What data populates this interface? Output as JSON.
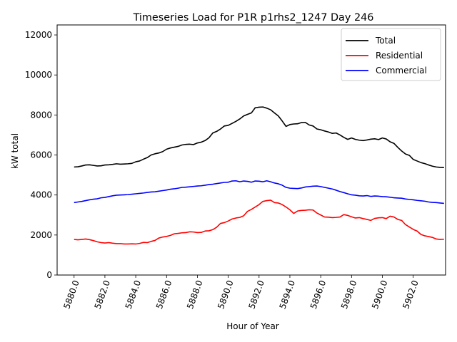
{
  "chart_data": {
    "type": "line",
    "title": "Timeseries Load for P1R p1rhs2_1247  Day 246",
    "xlabel": "Hour of Year",
    "ylabel": "kW total",
    "xlim": [
      5878.9,
      5904.1
    ],
    "ylim": [
      0,
      12500
    ],
    "xticks": [
      5880,
      5882,
      5884,
      5886,
      5888,
      5890,
      5892,
      5894,
      5896,
      5898,
      5900,
      5902
    ],
    "xtick_labels": [
      "5880.0",
      "5882.0",
      "5884.0",
      "5886.0",
      "5888.0",
      "5890.0",
      "5892.0",
      "5894.0",
      "5896.0",
      "5898.0",
      "5900.0",
      "5902.0"
    ],
    "yticks": [
      0,
      2000,
      4000,
      6000,
      8000,
      10000,
      12000
    ],
    "ytick_labels": [
      "0",
      "2000",
      "4000",
      "6000",
      "8000",
      "10000",
      "12000"
    ],
    "legend_position": "top-right",
    "x_start": 5880,
    "x_step": 0.25,
    "series": [
      {
        "name": "Total",
        "color": "#000000",
        "values": [
          5400,
          5410,
          5450,
          5500,
          5510,
          5480,
          5450,
          5460,
          5500,
          5510,
          5530,
          5560,
          5540,
          5550,
          5560,
          5580,
          5660,
          5700,
          5790,
          5870,
          6000,
          6060,
          6100,
          6170,
          6290,
          6350,
          6390,
          6430,
          6500,
          6530,
          6540,
          6520,
          6600,
          6640,
          6720,
          6860,
          7100,
          7180,
          7300,
          7450,
          7480,
          7580,
          7680,
          7800,
          7950,
          8030,
          8100,
          8360,
          8390,
          8400,
          8340,
          8260,
          8100,
          7950,
          7700,
          7430,
          7520,
          7550,
          7560,
          7620,
          7630,
          7500,
          7450,
          7300,
          7260,
          7200,
          7150,
          7080,
          7100,
          7000,
          6880,
          6780,
          6850,
          6780,
          6740,
          6720,
          6750,
          6790,
          6810,
          6770,
          6850,
          6800,
          6660,
          6580,
          6380,
          6200,
          6050,
          5980,
          5780,
          5700,
          5620,
          5570,
          5500,
          5440,
          5400,
          5380,
          5370
        ]
      },
      {
        "name": "Residential",
        "color": "#ff0000",
        "values": [
          1780,
          1760,
          1780,
          1800,
          1770,
          1720,
          1660,
          1620,
          1600,
          1620,
          1590,
          1570,
          1570,
          1550,
          1550,
          1560,
          1550,
          1580,
          1630,
          1620,
          1680,
          1730,
          1850,
          1900,
          1930,
          1980,
          2060,
          2080,
          2110,
          2120,
          2160,
          2150,
          2120,
          2130,
          2200,
          2210,
          2270,
          2390,
          2580,
          2620,
          2700,
          2800,
          2850,
          2880,
          2960,
          3180,
          3280,
          3400,
          3520,
          3680,
          3720,
          3740,
          3620,
          3600,
          3520,
          3400,
          3260,
          3080,
          3200,
          3230,
          3240,
          3260,
          3250,
          3100,
          3000,
          2900,
          2890,
          2870,
          2880,
          2900,
          3020,
          2980,
          2910,
          2850,
          2870,
          2820,
          2780,
          2730,
          2830,
          2860,
          2870,
          2820,
          2940,
          2900,
          2780,
          2730,
          2520,
          2400,
          2280,
          2200,
          2030,
          1960,
          1920,
          1880,
          1800,
          1780,
          1790
        ]
      },
      {
        "name": "Commercial",
        "color": "#0000ff",
        "values": [
          3620,
          3650,
          3680,
          3720,
          3760,
          3790,
          3810,
          3860,
          3880,
          3920,
          3960,
          3990,
          4000,
          4010,
          4020,
          4040,
          4060,
          4080,
          4100,
          4130,
          4150,
          4160,
          4190,
          4220,
          4250,
          4290,
          4310,
          4340,
          4380,
          4390,
          4410,
          4430,
          4450,
          4460,
          4490,
          4520,
          4540,
          4570,
          4600,
          4630,
          4640,
          4700,
          4710,
          4660,
          4700,
          4680,
          4640,
          4700,
          4690,
          4660,
          4710,
          4660,
          4600,
          4560,
          4490,
          4380,
          4340,
          4330,
          4320,
          4350,
          4400,
          4420,
          4440,
          4450,
          4420,
          4380,
          4340,
          4300,
          4240,
          4170,
          4120,
          4060,
          4010,
          3990,
          3960,
          3950,
          3970,
          3930,
          3950,
          3940,
          3920,
          3910,
          3890,
          3860,
          3850,
          3840,
          3800,
          3780,
          3760,
          3730,
          3710,
          3690,
          3650,
          3630,
          3620,
          3600,
          3580
        ]
      }
    ]
  }
}
